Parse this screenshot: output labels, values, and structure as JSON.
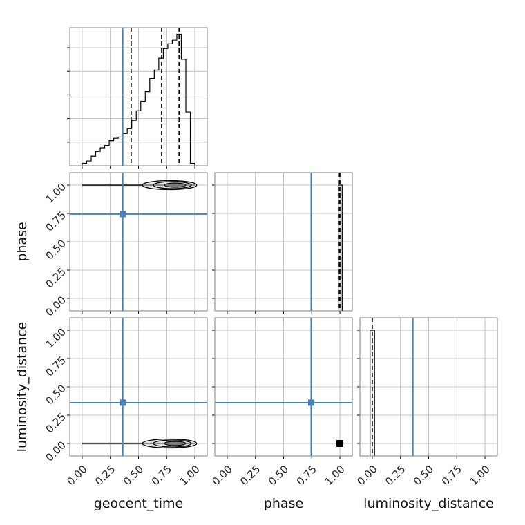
{
  "colors": {
    "truth": "#4682b4",
    "hist": "#000000",
    "grid": "#b0b0b0",
    "frame": "#808080"
  },
  "chart_data": {
    "type": "corner",
    "parameters": [
      "geocent_time",
      "phase",
      "luminosity_distance"
    ],
    "axis_labels": {
      "x": [
        "geocent_time",
        "phase",
        "luminosity_distance"
      ],
      "y": [
        "",
        "phase",
        "luminosity_distance"
      ]
    },
    "tick_labels": [
      "0.00",
      "0.25",
      "0.50",
      "0.75",
      "1.00"
    ],
    "tick_values": [
      0,
      0.25,
      0.5,
      0.75,
      1.0
    ],
    "ranges": {
      "geocent_time": [
        -0.11,
        1.11
      ],
      "phase": [
        -0.11,
        1.11
      ],
      "luminosity_distance": [
        -0.11,
        1.11
      ]
    },
    "truths": {
      "geocent_time": 0.36,
      "phase": 0.745,
      "luminosity_distance": 0.36
    },
    "grid": true,
    "hist_geocent_time": {
      "bin_edges": [
        0.0,
        0.04,
        0.08,
        0.12,
        0.16,
        0.2,
        0.24,
        0.28,
        0.32,
        0.36,
        0.4,
        0.44,
        0.48,
        0.52,
        0.56,
        0.6,
        0.64,
        0.68,
        0.72,
        0.76,
        0.8,
        0.84,
        0.88,
        0.92,
        0.96,
        1.0
      ],
      "heights": [
        0.02,
        0.04,
        0.08,
        0.12,
        0.15,
        0.17,
        0.21,
        0.23,
        0.24,
        0.27,
        0.31,
        0.38,
        0.46,
        0.54,
        0.62,
        0.73,
        0.8,
        0.9,
        0.98,
        1.02,
        1.05,
        1.1,
        0.89,
        0.45,
        0.02
      ],
      "quantile_lines": [
        0.435,
        0.705,
        0.86
      ]
    },
    "hist_phase": {
      "bar_range": [
        0.985,
        1.02
      ],
      "height": 1.0,
      "quantile_lines": [
        0.995,
        1.0
      ]
    },
    "hist_luminosity_distance": {
      "bar_range": [
        -0.02,
        0.02
      ],
      "height": 1.0,
      "quantile_lines": [
        0.0
      ]
    },
    "contours_geocent_time_phase": {
      "y_level": 1.0,
      "x_span": [
        0.0,
        1.0
      ],
      "core": [
        0.62,
        0.98
      ]
    },
    "contours_geocent_time_luminosity_distance": {
      "y_level": 0.0,
      "x_span": [
        0.0,
        1.0
      ],
      "core": [
        0.62,
        0.98
      ]
    },
    "phase_luminosity_distance_point": {
      "x": 1.0,
      "y": 0.0
    }
  }
}
